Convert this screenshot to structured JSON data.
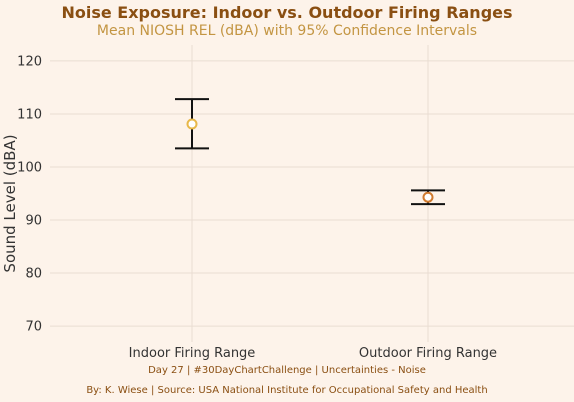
{
  "title": "Noise Exposure: Indoor vs. Outdoor Firing Ranges",
  "subtitle": "Mean NIOSH REL (dBA) with 95% Confidence Intervals",
  "caption_line1": "Day 27 | #30DayChartChallenge | Uncertainties - Noise",
  "caption_line2": "By: K. Wiese | Source: USA National Institute for Occupational Safety and Health",
  "colors": {
    "background": "#fdf3ea",
    "title": "#8a4f12",
    "subtitle": "#c39542",
    "gridline": "#e9ddd2",
    "errorbar": "#111111",
    "point_indoor": "#e8b84a",
    "point_outdoor": "#d07a2e"
  },
  "chart_data": {
    "type": "scatter",
    "title": "Noise Exposure: Indoor vs. Outdoor Firing Ranges",
    "subtitle": "Mean NIOSH REL (dBA) with 95% Confidence Intervals",
    "xlabel": "",
    "ylabel": "Sound Level (dBA)",
    "ylim": [
      67,
      123
    ],
    "yticks": [
      70,
      80,
      90,
      100,
      110,
      120
    ],
    "grid": true,
    "categories": [
      "Indoor Firing Range",
      "Outdoor Firing Range"
    ],
    "values": [
      108.1,
      94.3
    ],
    "ci_lower": [
      103.5,
      93.0
    ],
    "ci_upper": [
      112.8,
      95.6
    ]
  }
}
